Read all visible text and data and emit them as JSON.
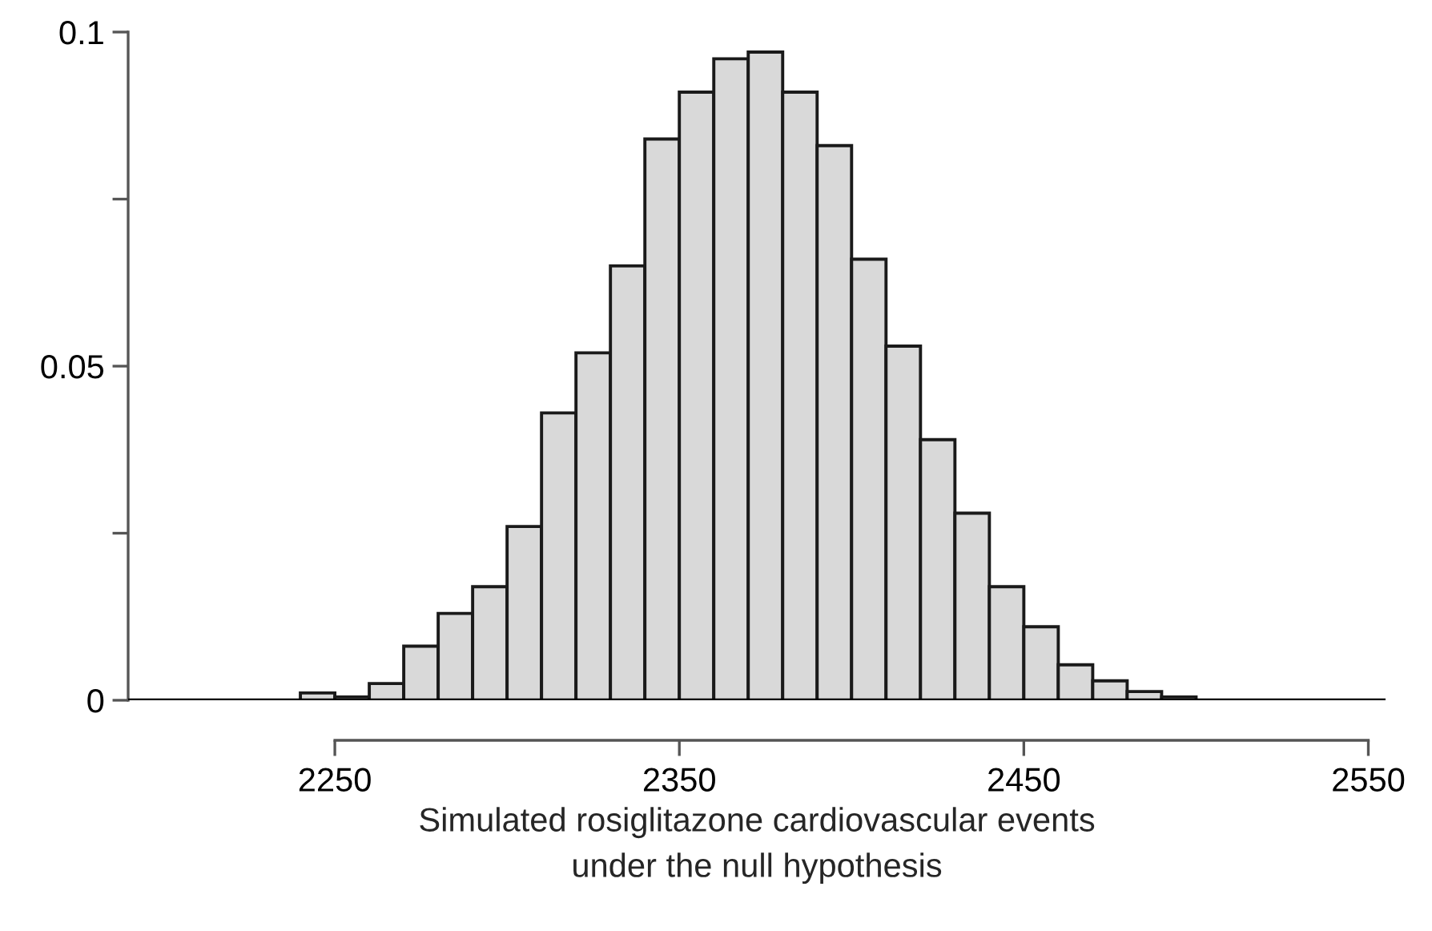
{
  "chart_data": {
    "type": "histogram",
    "xlabel": "Simulated rosiglitazone cardiovascular events\nunder the null hypothesis",
    "bins": [
      2240,
      2250,
      2260,
      2270,
      2280,
      2290,
      2300,
      2310,
      2320,
      2330,
      2340,
      2350,
      2360,
      2370,
      2380,
      2390,
      2400,
      2410,
      2420,
      2430,
      2440,
      2450,
      2460,
      2470,
      2480,
      2490,
      2500,
      2510,
      2520,
      2530,
      2540
    ],
    "values": [
      0.0011,
      0.0005,
      0.0025,
      0.0081,
      0.013,
      0.017,
      0.026,
      0.043,
      0.052,
      0.065,
      0.084,
      0.091,
      0.096,
      0.097,
      0.091,
      0.083,
      0.066,
      0.053,
      0.039,
      0.028,
      0.017,
      0.011,
      0.0053,
      0.0029,
      0.0013,
      0.0005,
      null,
      null,
      null,
      null
    ],
    "color": "#d9d9d9",
    "xlim": [
      2190,
      2555
    ],
    "ylim": [
      0,
      0.1
    ],
    "xticks": [
      2250,
      2350,
      2450,
      2550
    ],
    "yticks": [
      0,
      {
        "value": 0.025,
        "label": null
      },
      0.05,
      {
        "value": 0.075,
        "label": null
      },
      0.1
    ],
    "ref_lines": [
      {
        "axis": "y",
        "value": 0,
        "color": "#000000"
      }
    ],
    "grid": false
  }
}
